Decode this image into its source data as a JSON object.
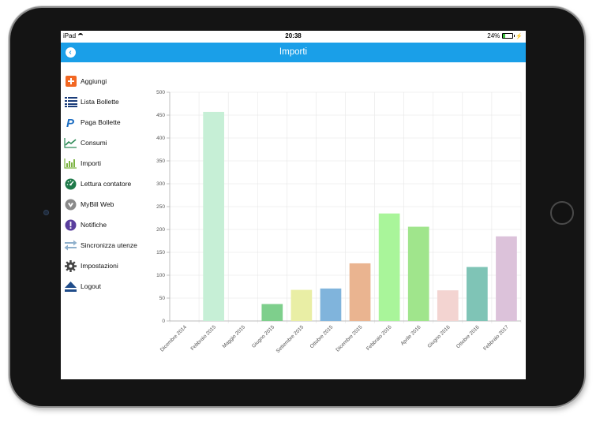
{
  "status": {
    "carrier": "iPad",
    "time": "20:38",
    "battery": "24%",
    "battery_level": 0.24
  },
  "navbar": {
    "title": "Importi"
  },
  "menu": [
    {
      "label": "Aggiungi",
      "icon": "plus-square-icon",
      "color": "#f26722"
    },
    {
      "label": "Lista Bollette",
      "icon": "list-icon",
      "color": "#1b3d7a"
    },
    {
      "label": "Paga Bollette",
      "icon": "paypal-icon",
      "color": "#1f6fc2"
    },
    {
      "label": "Consumi",
      "icon": "line-chart-icon",
      "color": "#2e8b57"
    },
    {
      "label": "Importi",
      "icon": "bar-chart-icon",
      "color": "#7cb342"
    },
    {
      "label": "Lettura contatore",
      "icon": "gauge-icon",
      "color": "#1f7a4a"
    },
    {
      "label": "MyBill Web",
      "icon": "mybill-logo-icon",
      "color": "#777777"
    },
    {
      "label": "Notifiche",
      "icon": "exclamation-icon",
      "color": "#5a3f9e"
    },
    {
      "label": "Sincronizza utenze",
      "icon": "sync-arrows-icon",
      "color": "#6a8fb0"
    },
    {
      "label": "Impostazioni",
      "icon": "gear-icon",
      "color": "#444444"
    },
    {
      "label": "Logout",
      "icon": "eject-icon",
      "color": "#1f4c8a"
    }
  ],
  "chart_data": {
    "type": "bar",
    "categories": [
      "Dicembre 2014",
      "Febbraio 2015",
      "Maggio 2015",
      "Giugno 2015",
      "Settembre 2015",
      "Ottobre 2015",
      "Dicembre 2015",
      "Febbraio 2016",
      "Aprile 2016",
      "Giugno 2016",
      "Ottobre 2016",
      "Febbraio 2017"
    ],
    "values": [
      0,
      457,
      0,
      37,
      68,
      71,
      126,
      235,
      206,
      67,
      118,
      185
    ],
    "colors": [
      "#cccccc",
      "#c6efd6",
      "#cccccc",
      "#7ecf8c",
      "#e9eea5",
      "#80b4dc",
      "#eab490",
      "#a9f59a",
      "#a0e58c",
      "#f3d4d1",
      "#7fc4b6",
      "#dcc2da"
    ],
    "yticks": [
      "0",
      "50",
      "100",
      "150",
      "200",
      "250",
      "300",
      "350",
      "400",
      "450",
      "500"
    ],
    "ylim": [
      0,
      500
    ],
    "grid": true,
    "title": "",
    "xlabel": "",
    "ylabel": ""
  }
}
